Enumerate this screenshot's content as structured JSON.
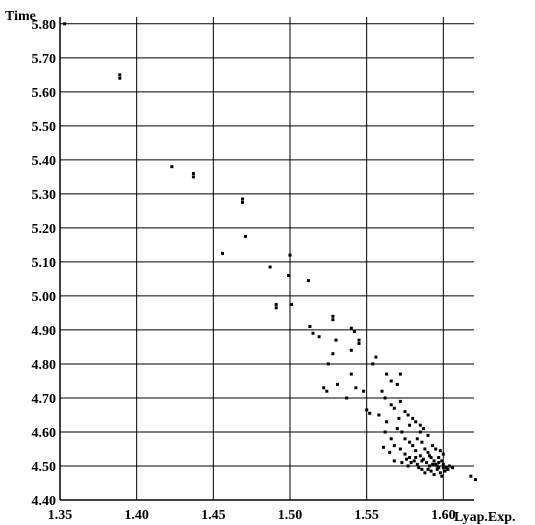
{
  "chart_data": {
    "type": "scatter",
    "title": "",
    "xlabel": "Lyap.Exp.",
    "ylabel": "Time",
    "xlim": [
      1.35,
      1.62
    ],
    "ylim": [
      4.4,
      5.82
    ],
    "x_ticks": [
      "1.35",
      "1.40",
      "1.45",
      "1.50",
      "1.55",
      "1.60"
    ],
    "y_ticks": [
      "4.40",
      "4.50",
      "4.60",
      "4.70",
      "4.80",
      "4.90",
      "5.00",
      "5.10",
      "5.20",
      "5.30",
      "5.40",
      "5.50",
      "5.60",
      "5.70",
      "5.80"
    ],
    "grid": true,
    "colors": {
      "points": "#000000",
      "grid": "#000000",
      "background": "#ffffff"
    },
    "series": [
      {
        "points": [
          [
            1.353,
            5.8
          ],
          [
            1.389,
            5.64
          ],
          [
            1.389,
            5.65
          ],
          [
            1.423,
            5.38
          ],
          [
            1.437,
            5.35
          ],
          [
            1.437,
            5.36
          ],
          [
            1.469,
            5.275
          ],
          [
            1.469,
            5.285
          ],
          [
            1.471,
            5.175
          ],
          [
            1.456,
            5.125
          ],
          [
            1.5,
            5.12
          ],
          [
            1.487,
            5.085
          ],
          [
            1.499,
            5.06
          ],
          [
            1.512,
            5.045
          ],
          [
            1.491,
            4.975
          ],
          [
            1.491,
            4.965
          ],
          [
            1.501,
            4.975
          ],
          [
            1.528,
            4.94
          ],
          [
            1.528,
            4.93
          ],
          [
            1.513,
            4.91
          ],
          [
            1.515,
            4.89
          ],
          [
            1.519,
            4.88
          ],
          [
            1.54,
            4.905
          ],
          [
            1.542,
            4.895
          ],
          [
            1.545,
            4.87
          ],
          [
            1.545,
            4.86
          ],
          [
            1.53,
            4.87
          ],
          [
            1.54,
            4.84
          ],
          [
            1.528,
            4.83
          ],
          [
            1.525,
            4.8
          ],
          [
            1.556,
            4.82
          ],
          [
            1.554,
            4.8
          ],
          [
            1.563,
            4.77
          ],
          [
            1.566,
            4.75
          ],
          [
            1.572,
            4.77
          ],
          [
            1.57,
            4.74
          ],
          [
            1.54,
            4.77
          ],
          [
            1.531,
            4.74
          ],
          [
            1.522,
            4.73
          ],
          [
            1.524,
            4.72
          ],
          [
            1.543,
            4.73
          ],
          [
            1.548,
            4.72
          ],
          [
            1.56,
            4.72
          ],
          [
            1.562,
            4.7
          ],
          [
            1.537,
            4.7
          ],
          [
            1.55,
            4.665
          ],
          [
            1.552,
            4.655
          ],
          [
            1.558,
            4.65
          ],
          [
            1.566,
            4.68
          ],
          [
            1.568,
            4.67
          ],
          [
            1.572,
            4.69
          ],
          [
            1.575,
            4.66
          ],
          [
            1.577,
            4.65
          ],
          [
            1.571,
            4.64
          ],
          [
            1.563,
            4.63
          ],
          [
            1.58,
            4.64
          ],
          [
            1.582,
            4.63
          ],
          [
            1.585,
            4.62
          ],
          [
            1.587,
            4.61
          ],
          [
            1.578,
            4.62
          ],
          [
            1.57,
            4.61
          ],
          [
            1.573,
            4.6
          ],
          [
            1.562,
            4.6
          ],
          [
            1.585,
            4.6
          ],
          [
            1.59,
            4.59
          ],
          [
            1.566,
            4.58
          ],
          [
            1.575,
            4.58
          ],
          [
            1.578,
            4.57
          ],
          [
            1.583,
            4.58
          ],
          [
            1.586,
            4.57
          ],
          [
            1.593,
            4.56
          ],
          [
            1.595,
            4.55
          ],
          [
            1.568,
            4.56
          ],
          [
            1.572,
            4.55
          ],
          [
            1.58,
            4.56
          ],
          [
            1.582,
            4.545
          ],
          [
            1.588,
            4.55
          ],
          [
            1.59,
            4.54
          ],
          [
            1.598,
            4.545
          ],
          [
            1.6,
            4.535
          ],
          [
            1.575,
            4.535
          ],
          [
            1.578,
            4.525
          ],
          [
            1.585,
            4.53
          ],
          [
            1.587,
            4.52
          ],
          [
            1.592,
            4.525
          ],
          [
            1.594,
            4.515
          ],
          [
            1.597,
            4.525
          ],
          [
            1.599,
            4.515
          ],
          [
            1.581,
            4.515
          ],
          [
            1.583,
            4.505
          ],
          [
            1.589,
            4.51
          ],
          [
            1.591,
            4.5
          ],
          [
            1.595,
            4.505
          ],
          [
            1.597,
            4.495
          ],
          [
            1.6,
            4.505
          ],
          [
            1.602,
            4.495
          ],
          [
            1.577,
            4.5
          ],
          [
            1.579,
            4.51
          ],
          [
            1.584,
            4.495
          ],
          [
            1.586,
            4.49
          ],
          [
            1.59,
            4.49
          ],
          [
            1.592,
            4.485
          ],
          [
            1.596,
            4.49
          ],
          [
            1.598,
            4.48
          ],
          [
            1.601,
            4.485
          ],
          [
            1.603,
            4.49
          ],
          [
            1.588,
            4.48
          ],
          [
            1.594,
            4.475
          ],
          [
            1.599,
            4.47
          ],
          [
            1.596,
            4.5
          ],
          [
            1.593,
            4.505
          ],
          [
            1.586,
            4.515
          ],
          [
            1.582,
            4.525
          ],
          [
            1.576,
            4.52
          ],
          [
            1.573,
            4.51
          ],
          [
            1.568,
            4.515
          ],
          [
            1.565,
            4.54
          ],
          [
            1.561,
            4.555
          ],
          [
            1.591,
            4.53
          ],
          [
            1.597,
            4.51
          ],
          [
            1.6,
            4.495
          ],
          [
            1.604,
            4.5
          ],
          [
            1.606,
            4.495
          ],
          [
            1.618,
            4.47
          ],
          [
            1.621,
            4.46
          ]
        ]
      }
    ]
  }
}
